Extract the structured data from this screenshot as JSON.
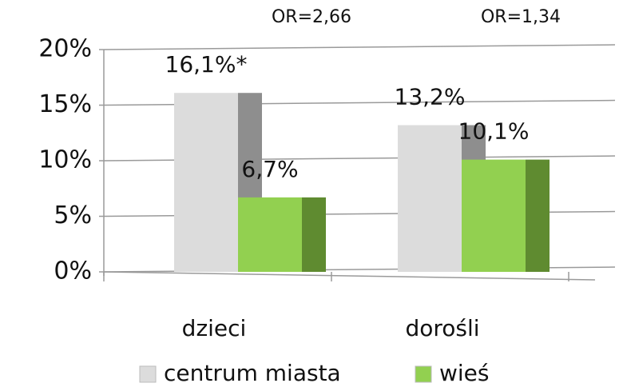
{
  "chart_data": {
    "type": "bar3d",
    "annotations": [
      "OR=2,66",
      "OR=1,34"
    ],
    "categories": [
      "dzieci",
      "dorośli"
    ],
    "series": [
      {
        "name": "centrum miasta",
        "color": "#dcdcdc",
        "side_color": "#8e8e8e",
        "values": [
          16.1,
          13.2
        ],
        "value_labels": [
          "16,1%*",
          "13,2%"
        ]
      },
      {
        "name": "wieś",
        "color": "#92d050",
        "side_color": "#5f8b30",
        "values": [
          6.7,
          10.1
        ],
        "value_labels": [
          "6,7%",
          "10,1%"
        ]
      }
    ],
    "ylim": [
      0,
      20
    ],
    "yticks": [
      {
        "value": 0,
        "label": "0%"
      },
      {
        "value": 5,
        "label": "5%"
      },
      {
        "value": 10,
        "label": "10%"
      },
      {
        "value": 15,
        "label": "15%"
      },
      {
        "value": 20,
        "label": "20%"
      }
    ],
    "grid": true
  }
}
